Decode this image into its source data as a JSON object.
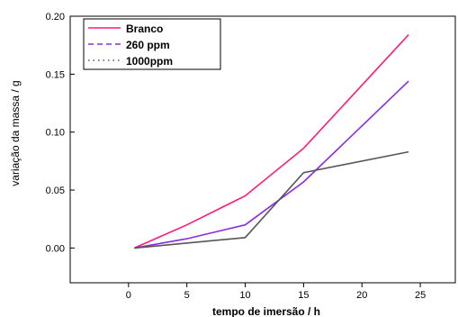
{
  "chart_data": {
    "type": "line",
    "xlabel": "tempo de imersão / h",
    "ylabel": "variação da massa / g",
    "xlim": [
      -5,
      28
    ],
    "ylim": [
      -0.03,
      0.2
    ],
    "xticks": [
      0,
      5,
      10,
      15,
      20,
      25
    ],
    "yticks": [
      0.0,
      0.05,
      0.1,
      0.15,
      0.2
    ],
    "xtick_labels": [
      "0",
      "5",
      "10",
      "15",
      "20",
      "25"
    ],
    "ytick_labels": [
      "0.00",
      "0.05",
      "0.10",
      "0.15",
      "0.20"
    ],
    "grid": false,
    "legend_position": "top-left",
    "series": [
      {
        "name": "Branco",
        "color": "#ff1a75",
        "dash": "solid",
        "x": [
          0.5,
          5,
          10,
          15,
          24
        ],
        "y": [
          0.0,
          0.02,
          0.045,
          0.086,
          0.184
        ]
      },
      {
        "name": "260 ppm",
        "color": "#8a2be2",
        "dash": "dashed",
        "x": [
          0.5,
          5,
          10,
          15,
          24
        ],
        "y": [
          0.0,
          0.008,
          0.02,
          0.057,
          0.144
        ]
      },
      {
        "name": "1000ppm",
        "color": "#555555",
        "dash": "dotted",
        "x": [
          0.5,
          10,
          15,
          24
        ],
        "y": [
          0.0,
          0.009,
          0.065,
          0.083
        ]
      }
    ]
  }
}
